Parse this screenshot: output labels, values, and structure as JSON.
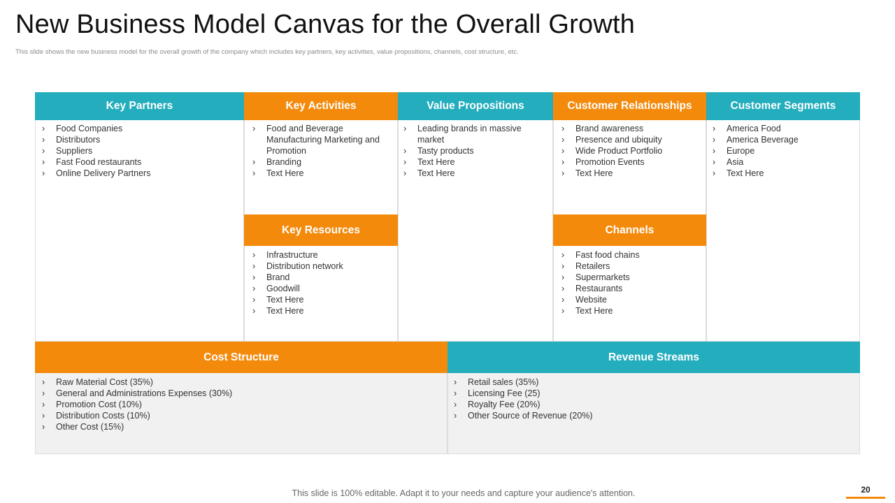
{
  "header": {
    "title": "New Business Model Canvas for the Overall Growth",
    "subtitle": "This slide shows the new business model for the overall growth of the company which includes key partners, key activities, value propositions, channels, cost structure, etc."
  },
  "canvas": {
    "key_partners": {
      "title": "Key Partners",
      "items": [
        "Food Companies",
        "Distributors",
        "Suppliers",
        "Fast Food restaurants",
        "Online Delivery  Partners"
      ]
    },
    "key_activities": {
      "title": "Key Activities",
      "items": [
        "Food and Beverage Manufacturing Marketing and Promotion",
        "Branding",
        "Text Here"
      ]
    },
    "key_resources": {
      "title": "Key Resources",
      "items": [
        "Infrastructure",
        "Distribution network",
        "Brand",
        "Goodwill",
        "Text Here",
        "Text Here"
      ]
    },
    "value_propositions": {
      "title": "Value Propositions",
      "items": [
        "Leading brands in massive market",
        "Tasty products",
        "Text Here",
        "Text Here"
      ]
    },
    "customer_relationships": {
      "title": "Customer Relationships",
      "items": [
        "Brand awareness",
        "Presence and ubiquity",
        "Wide Product Portfolio",
        "Promotion Events",
        "Text Here"
      ]
    },
    "channels": {
      "title": "Channels",
      "items": [
        "Fast food  chains",
        "Retailers",
        "Supermarkets",
        "Restaurants",
        "Website",
        "Text Here"
      ]
    },
    "customer_segments": {
      "title": "Customer Segments",
      "items": [
        "America Food",
        "America Beverage",
        "Europe",
        "Asia",
        "Text Here"
      ]
    },
    "cost_structure": {
      "title": "Cost Structure",
      "items": [
        "Raw Material Cost (35%)",
        "General and Administrations Expenses (30%)",
        "Promotion Cost (10%)",
        "Distribution Costs (10%)",
        "Other Cost (15%)"
      ]
    },
    "revenue_streams": {
      "title": "Revenue Streams",
      "items": [
        "Retail sales (35%)",
        "Licensing Fee (25)",
        "Royalty Fee (20%)",
        "Other Source of Revenue  (20%)"
      ]
    }
  },
  "footer": {
    "note": "This slide is 100% editable. Adapt it to your needs and capture your audience's attention.",
    "page_number": "20"
  },
  "colors": {
    "teal": "#23adbd",
    "orange": "#f48a0c"
  }
}
